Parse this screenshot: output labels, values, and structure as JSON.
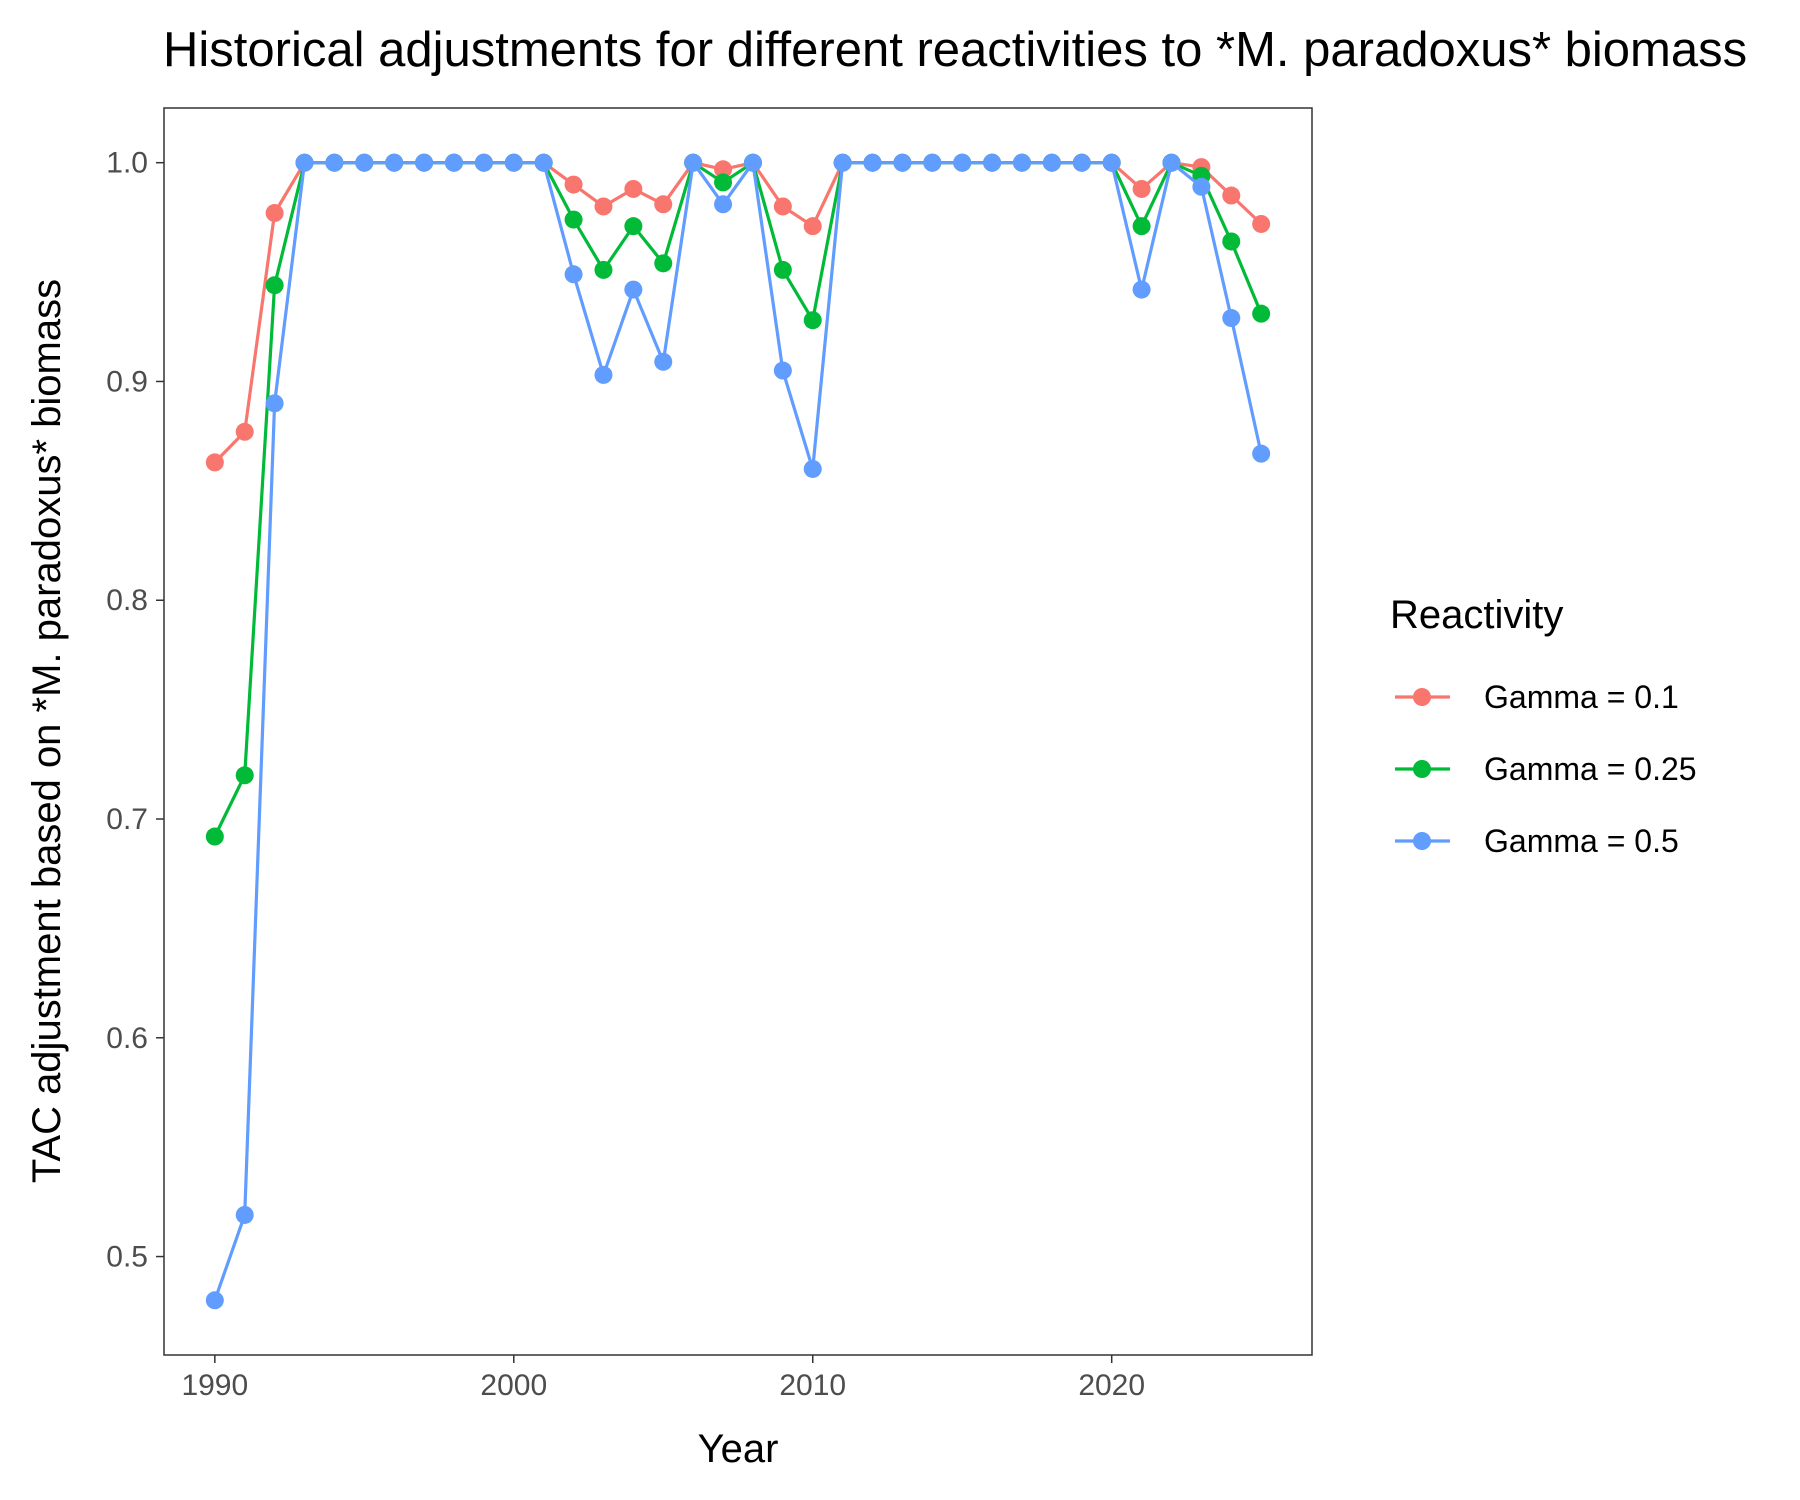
{
  "chart_data": {
    "type": "line",
    "title": "Historical adjustments for different reactivities to *M. paradoxus* biomass",
    "xlabel": "Year",
    "ylabel": "TAC adjustment based on *M. paradoxus* biomass",
    "x": [
      1990,
      1991,
      1992,
      1993,
      1994,
      1995,
      1996,
      1997,
      1998,
      1999,
      2000,
      2001,
      2002,
      2003,
      2004,
      2005,
      2006,
      2007,
      2008,
      2009,
      2010,
      2011,
      2012,
      2013,
      2014,
      2015,
      2016,
      2017,
      2018,
      2019,
      2020,
      2021,
      2022,
      2023,
      2024,
      2025
    ],
    "xlim": [
      1988.3,
      2026.7
    ],
    "ylim": [
      0.455,
      1.025
    ],
    "xticks": [
      1990,
      2000,
      2010,
      2020
    ],
    "xtick_labels": [
      "1990",
      "2000",
      "2010",
      "2020"
    ],
    "yticks": [
      0.5,
      0.6,
      0.7,
      0.8,
      0.9,
      1.0
    ],
    "ytick_labels": [
      "0.5",
      "0.6",
      "0.7",
      "0.8",
      "0.9",
      "1.0"
    ],
    "grid": false,
    "legend_title": "Reactivity",
    "legend_position": "right",
    "series": [
      {
        "name": "Gamma = 0.1",
        "color": "#F8766D",
        "values": [
          0.863,
          0.877,
          0.977,
          1.0,
          1.0,
          1.0,
          1.0,
          1.0,
          1.0,
          1.0,
          1.0,
          1.0,
          0.99,
          0.98,
          0.988,
          0.981,
          1.0,
          0.997,
          1.0,
          0.98,
          0.971,
          1.0,
          1.0,
          1.0,
          1.0,
          1.0,
          1.0,
          1.0,
          1.0,
          1.0,
          1.0,
          0.988,
          1.0,
          0.998,
          0.985,
          0.972
        ]
      },
      {
        "name": "Gamma = 0.25",
        "color": "#00BA38",
        "values": [
          0.692,
          0.72,
          0.944,
          1.0,
          1.0,
          1.0,
          1.0,
          1.0,
          1.0,
          1.0,
          1.0,
          1.0,
          0.974,
          0.951,
          0.971,
          0.954,
          1.0,
          0.991,
          1.0,
          0.951,
          0.928,
          1.0,
          1.0,
          1.0,
          1.0,
          1.0,
          1.0,
          1.0,
          1.0,
          1.0,
          1.0,
          0.971,
          1.0,
          0.994,
          0.964,
          0.931
        ]
      },
      {
        "name": "Gamma = 0.5",
        "color": "#619CFF",
        "values": [
          0.48,
          0.519,
          0.89,
          1.0,
          1.0,
          1.0,
          1.0,
          1.0,
          1.0,
          1.0,
          1.0,
          1.0,
          0.949,
          0.903,
          0.942,
          0.909,
          1.0,
          0.981,
          1.0,
          0.905,
          0.86,
          1.0,
          1.0,
          1.0,
          1.0,
          1.0,
          1.0,
          1.0,
          1.0,
          1.0,
          1.0,
          0.942,
          1.0,
          0.989,
          0.929,
          0.867
        ]
      }
    ]
  }
}
